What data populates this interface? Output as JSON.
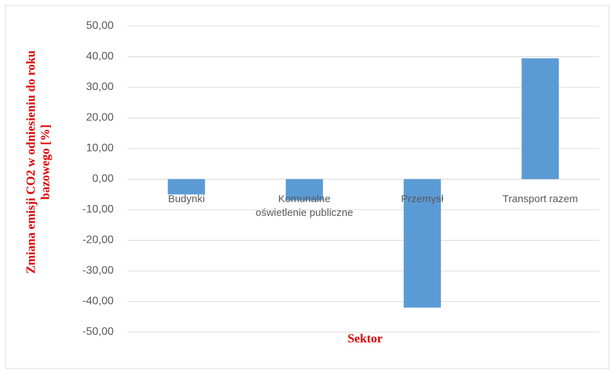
{
  "chart_data": {
    "type": "bar",
    "x_label": "Sektor",
    "y_label": "Zmiana emisji CO2 w odniesieniu do roku bazowego [%]",
    "categories": [
      "Budynki",
      "Komunalne oświetlenie publiczne",
      "Przemysł",
      "Transport razem"
    ],
    "values": [
      -5,
      -7,
      -42,
      39.5
    ],
    "color": "#5b9bd5",
    "ylim": [
      -50,
      50
    ],
    "yticks": [
      {
        "value": -50,
        "label": "-50,00"
      },
      {
        "value": -40,
        "label": "-40,00"
      },
      {
        "value": -30,
        "label": "-30,00"
      },
      {
        "value": -20,
        "label": "-20,00"
      },
      {
        "value": -10,
        "label": "-10,00"
      },
      {
        "value": 0,
        "label": "0,00"
      },
      {
        "value": 10,
        "label": "10,00"
      },
      {
        "value": 20,
        "label": "20,00"
      },
      {
        "value": 30,
        "label": "30,00"
      },
      {
        "value": 40,
        "label": "40,00"
      },
      {
        "value": 50,
        "label": "50,00"
      }
    ],
    "grid": true
  }
}
